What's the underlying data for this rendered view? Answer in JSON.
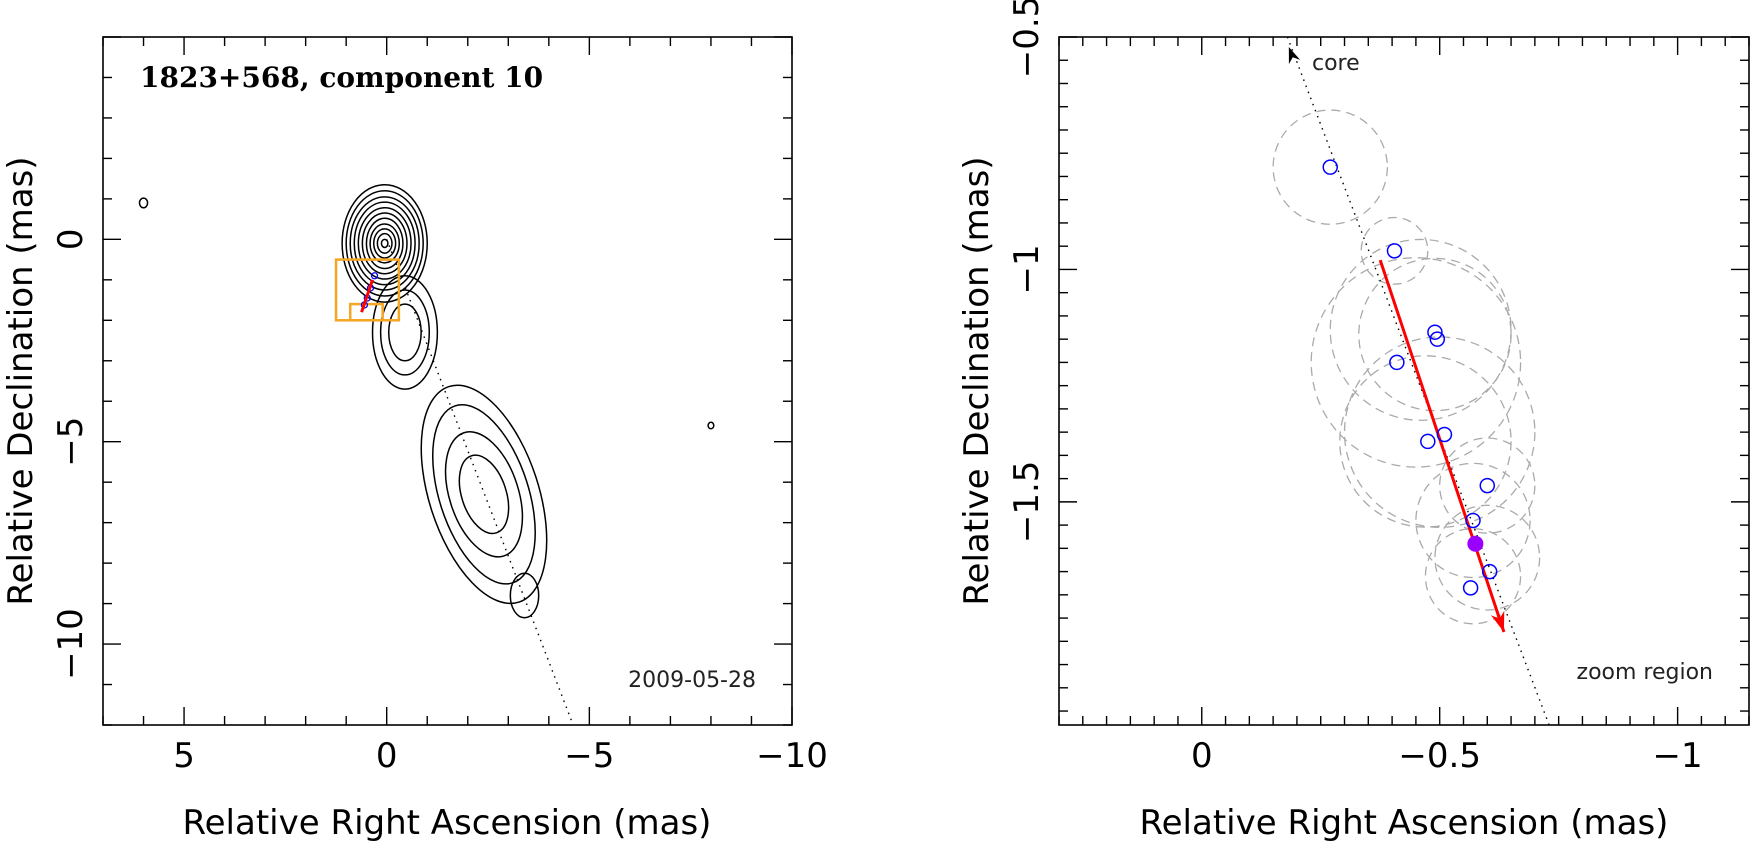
{
  "chart_data": [
    {
      "type": "contour",
      "title": "1823+568, component 10",
      "date_label": "2009-05-28",
      "xlabel": "Relative Right Ascension (mas)",
      "ylabel": "Relative Declination (mas)",
      "xlim": [
        7,
        -10
      ],
      "ylim": [
        -12,
        5
      ],
      "xticks": [
        5,
        0,
        -5,
        -10
      ],
      "yticks": [
        0,
        -5,
        -10
      ],
      "xtick_labels": [
        "5",
        "0",
        "−5",
        "−10"
      ],
      "ytick_labels": [
        "0",
        "−5",
        "−10"
      ],
      "colors": {
        "contour": "#000000",
        "zoom_box": "#f5a623",
        "vector": "#ff0000",
        "points": "#0000ff"
      },
      "contour_groups": [
        {
          "name": "core",
          "center": [
            0.05,
            -0.1
          ],
          "levels": [
            {
              "rx": 1.05,
              "ry": 1.45
            },
            {
              "rx": 0.95,
              "ry": 1.3
            },
            {
              "rx": 0.85,
              "ry": 1.15
            },
            {
              "rx": 0.75,
              "ry": 1.02
            },
            {
              "rx": 0.65,
              "ry": 0.88
            },
            {
              "rx": 0.55,
              "ry": 0.75
            },
            {
              "rx": 0.45,
              "ry": 0.62
            },
            {
              "rx": 0.36,
              "ry": 0.48
            },
            {
              "rx": 0.27,
              "ry": 0.36
            },
            {
              "rx": 0.18,
              "ry": 0.24
            },
            {
              "rx": 0.08,
              "ry": 0.1
            }
          ]
        },
        {
          "name": "tail",
          "center": [
            -0.45,
            -2.3
          ],
          "levels": [
            {
              "rx": 0.8,
              "ry": 1.4
            },
            {
              "rx": 0.6,
              "ry": 1.05
            },
            {
              "rx": 0.4,
              "ry": 0.7
            }
          ]
        },
        {
          "name": "jet",
          "center": [
            -2.4,
            -6.3
          ],
          "levels": [
            {
              "rx": 1.35,
              "ry": 2.8
            },
            {
              "rx": 1.1,
              "ry": 2.3
            },
            {
              "rx": 0.85,
              "ry": 1.6
            },
            {
              "rx": 0.55,
              "ry": 1.0
            }
          ]
        },
        {
          "name": "outer-blob",
          "center": [
            -3.4,
            -8.8
          ],
          "levels": [
            {
              "rx": 0.35,
              "ry": 0.55
            }
          ]
        },
        {
          "name": "noise-a",
          "center": [
            6.0,
            0.9
          ],
          "levels": [
            {
              "rx": 0.1,
              "ry": 0.12
            }
          ]
        },
        {
          "name": "noise-b",
          "center": [
            -8.0,
            -4.6
          ],
          "levels": [
            {
              "rx": 0.07,
              "ry": 0.08
            }
          ]
        }
      ],
      "jet_axis": {
        "from": [
          0.0,
          0.0
        ],
        "to": [
          -4.6,
          -12
        ]
      },
      "zoom_boxes": [
        {
          "x": [
            -0.3,
            1.25
          ],
          "y": [
            -0.5,
            -2.0
          ]
        },
        {
          "x": [
            0.1,
            0.9
          ],
          "y": [
            -1.6,
            -2.0
          ]
        }
      ],
      "vector": {
        "from": [
          0.35,
          -1.0
        ],
        "to": [
          0.62,
          -1.8
        ]
      },
      "points": [
        {
          "x": 0.3,
          "y": -0.9
        },
        {
          "x": 0.4,
          "y": -1.2
        },
        {
          "x": 0.48,
          "y": -1.45
        },
        {
          "x": 0.55,
          "y": -1.62
        }
      ]
    },
    {
      "type": "scatter",
      "xlabel": "Relative Right Ascension (mas)",
      "ylabel": "Relative Declination (mas)",
      "xlim": [
        0.3,
        -1.15
      ],
      "ylim": [
        -1.98,
        -0.5
      ],
      "xticks": [
        0,
        -0.5,
        -1
      ],
      "yticks": [
        -0.5,
        -1,
        -1.5
      ],
      "xtick_labels": [
        "0",
        "−0.5",
        "−1"
      ],
      "ytick_labels": [
        "−0.5",
        "−1",
        "−1.5"
      ],
      "annotations": [
        "core",
        "zoom region"
      ],
      "colors": {
        "points": "#0000ff",
        "filled_point": "#9900ff",
        "vector": "#ff0000",
        "circles": "#aaaaaa",
        "axis_line": "#000000"
      },
      "jet_axis": {
        "from": [
          -0.18,
          -0.5
        ],
        "to": [
          -0.73,
          -1.98
        ]
      },
      "vector": {
        "from": [
          -0.375,
          -0.98
        ],
        "to": [
          -0.635,
          -1.78
        ]
      },
      "points": [
        {
          "x": -0.27,
          "y": -0.78
        },
        {
          "x": -0.405,
          "y": -0.96
        },
        {
          "x": -0.49,
          "y": -1.135
        },
        {
          "x": -0.495,
          "y": -1.15
        },
        {
          "x": -0.41,
          "y": -1.2
        },
        {
          "x": -0.475,
          "y": -1.37
        },
        {
          "x": -0.51,
          "y": -1.355
        },
        {
          "x": -0.6,
          "y": -1.465
        },
        {
          "x": -0.57,
          "y": -1.54
        },
        {
          "x": -0.605,
          "y": -1.65
        },
        {
          "x": -0.565,
          "y": -1.685
        }
      ],
      "filled_point": {
        "x": -0.575,
        "y": -1.59
      },
      "error_circles": [
        {
          "x": -0.27,
          "y": -0.78,
          "r": 0.12
        },
        {
          "x": -0.405,
          "y": -0.96,
          "r": 0.07
        },
        {
          "x": -0.49,
          "y": -1.14,
          "r": 0.16
        },
        {
          "x": -0.46,
          "y": -1.13,
          "r": 0.19
        },
        {
          "x": -0.45,
          "y": -1.2,
          "r": 0.22
        },
        {
          "x": -0.47,
          "y": -1.37,
          "r": 0.18
        },
        {
          "x": -0.5,
          "y": -1.35,
          "r": 0.2
        },
        {
          "x": -0.6,
          "y": -1.465,
          "r": 0.1
        },
        {
          "x": -0.57,
          "y": -1.54,
          "r": 0.12
        },
        {
          "x": -0.6,
          "y": -1.62,
          "r": 0.11
        },
        {
          "x": -0.57,
          "y": -1.66,
          "r": 0.1
        }
      ]
    }
  ]
}
